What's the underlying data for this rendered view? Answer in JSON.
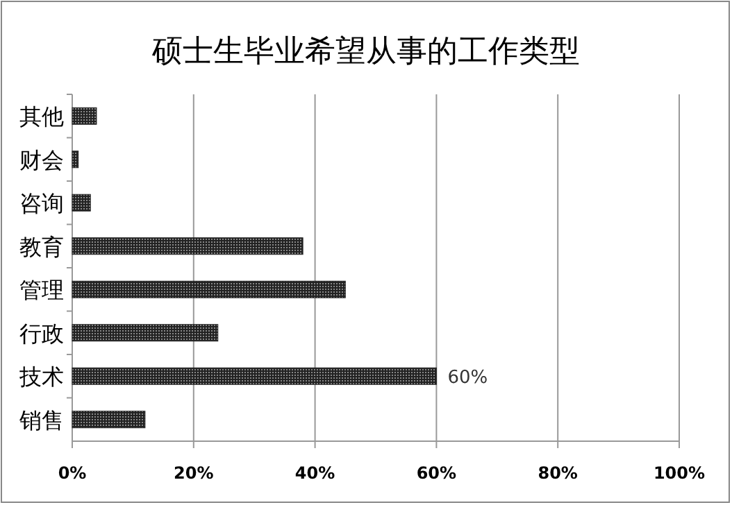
{
  "chart_data": {
    "type": "bar",
    "orientation": "horizontal",
    "title": "硕士生毕业希望从事的工作类型",
    "categories": [
      "其他",
      "财会",
      "咨询",
      "教育",
      "管理",
      "行政",
      "技术",
      "销售"
    ],
    "values": [
      4,
      1,
      3,
      38,
      45,
      24,
      60,
      12
    ],
    "value_labels": [
      null,
      null,
      null,
      null,
      null,
      null,
      "60%",
      null
    ],
    "color": "#222222",
    "xlim": [
      0,
      100
    ],
    "xticks": [
      {
        "value": 0,
        "label": "0%"
      },
      {
        "value": 20,
        "label": "20%"
      },
      {
        "value": 40,
        "label": "40%"
      },
      {
        "value": 60,
        "label": "60%"
      },
      {
        "value": 80,
        "label": "80%"
      },
      {
        "value": 100,
        "label": "100%"
      }
    ],
    "grid": "x"
  }
}
